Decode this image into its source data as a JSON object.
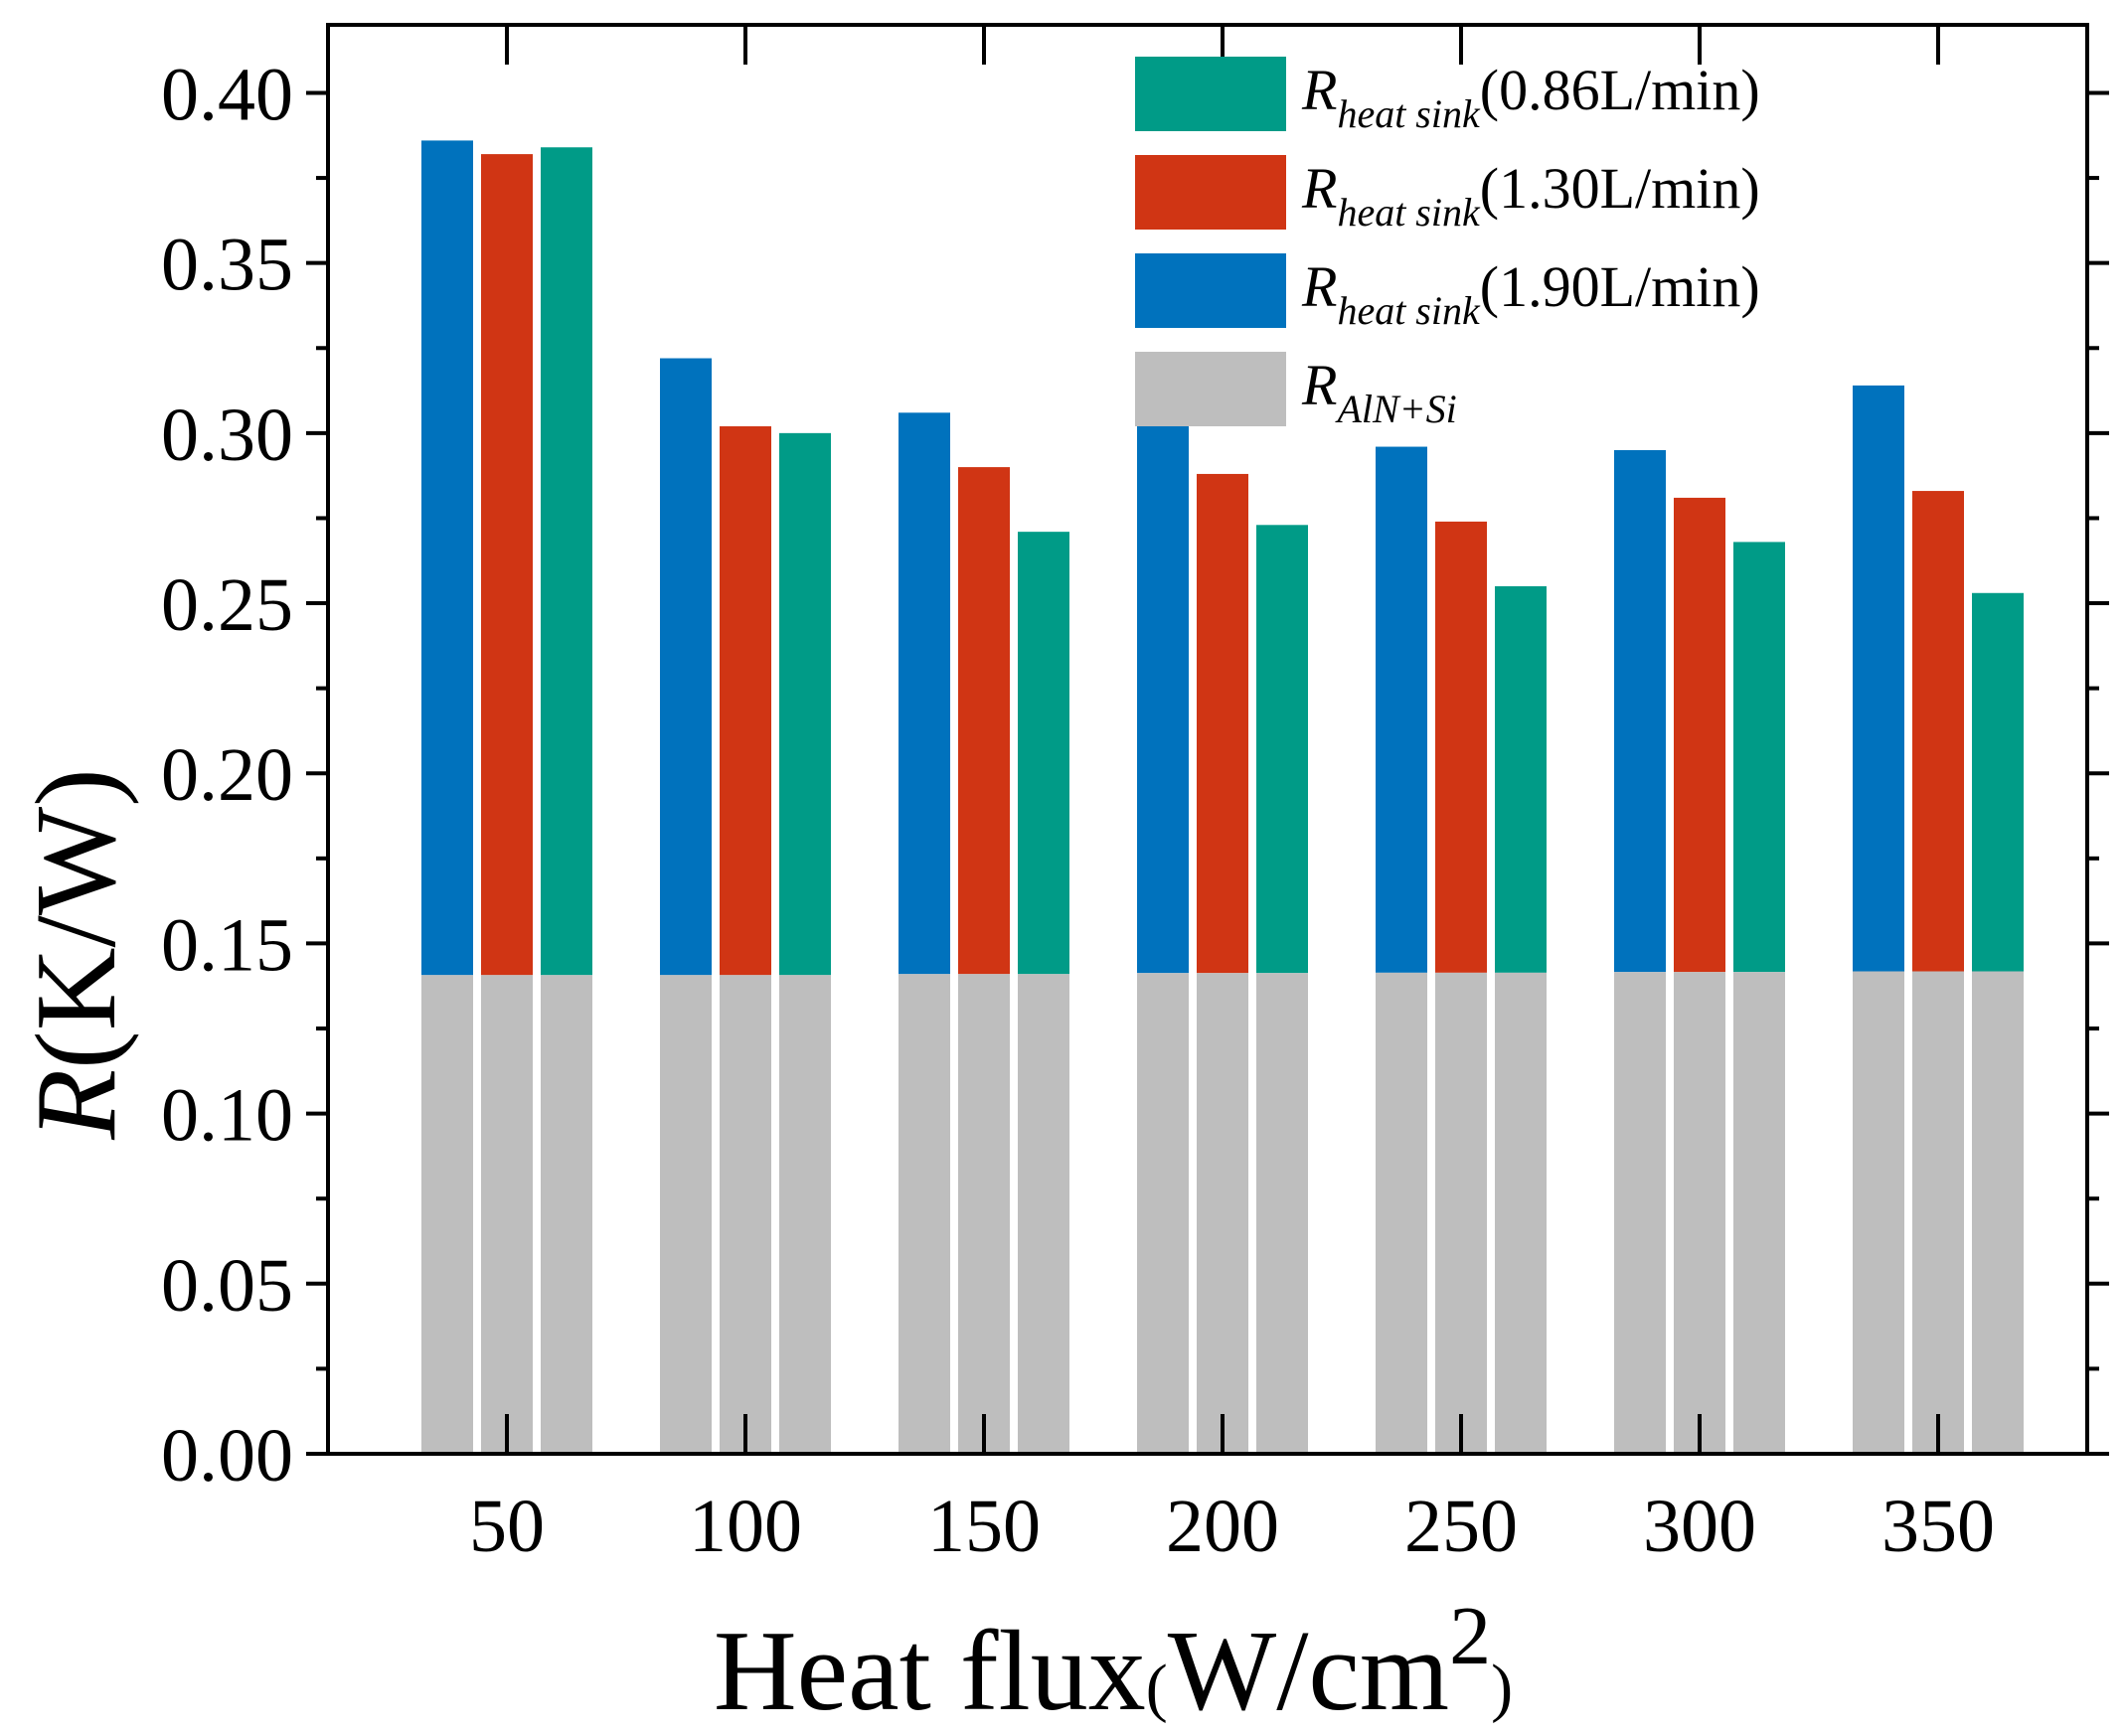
{
  "chart_data": {
    "type": "bar",
    "stacked_baseline": true,
    "categories": [
      "50",
      "100",
      "150",
      "200",
      "250",
      "300",
      "350"
    ],
    "ylim": [
      0.0,
      0.42
    ],
    "yticks": [
      "0.00",
      "0.05",
      "0.10",
      "0.15",
      "0.20",
      "0.25",
      "0.30",
      "0.35",
      "0.40"
    ],
    "ylabel_italic": "R",
    "ylabel_rest": "(K/W)",
    "xlabel_main": "Heat flux",
    "xlabel_open": "(",
    "xlabel_unit": "W/cm",
    "xlabel_sup": "2",
    "xlabel_close": ")",
    "baseline": {
      "name_R": "R",
      "name_sub": "AlN+Si",
      "color": "#bebebe",
      "values": [
        0.1407,
        0.1407,
        0.141,
        0.1413,
        0.1414,
        0.1416,
        0.1418
      ]
    },
    "series": [
      {
        "name_R": "R",
        "name_sub": "heat sink",
        "name_suffix": "(1.90L/min)",
        "color": "#0072bd",
        "values": [
          0.386,
          0.322,
          0.306,
          0.302,
          0.296,
          0.295,
          0.314
        ]
      },
      {
        "name_R": "R",
        "name_sub": "heat sink",
        "name_suffix": "(1.30L/min)",
        "color": "#d03514",
        "values": [
          0.382,
          0.302,
          0.29,
          0.288,
          0.274,
          0.281,
          0.283
        ]
      },
      {
        "name_R": "R",
        "name_sub": "heat sink",
        "name_suffix": "(0.86L/min)",
        "color": "#009b87",
        "values": [
          0.384,
          0.3,
          0.271,
          0.273,
          0.255,
          0.268,
          0.253
        ]
      }
    ],
    "legend_order": [
      2,
      1,
      0,
      "baseline"
    ],
    "legend_position": "top-right"
  }
}
